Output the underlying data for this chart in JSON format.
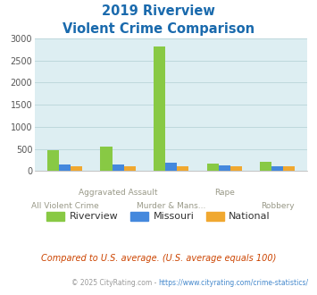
{
  "title_line1": "2019 Riverview",
  "title_line2": "Violent Crime Comparison",
  "title_color": "#1a6aad",
  "riverview": [
    475,
    560,
    2820,
    175,
    205
  ],
  "missouri": [
    150,
    155,
    185,
    130,
    115
  ],
  "national": [
    105,
    105,
    100,
    100,
    110
  ],
  "bar_color_riverview": "#88c944",
  "bar_color_missouri": "#4488dd",
  "bar_color_national": "#f0a830",
  "bg_color": "#ddeef2",
  "ylim": [
    0,
    3000
  ],
  "yticks": [
    0,
    500,
    1000,
    1500,
    2000,
    2500,
    3000
  ],
  "top_xlabels": {
    "1": "Aggravated Assault",
    "3": "Rape"
  },
  "bottom_xlabels": {
    "0": "All Violent Crime",
    "2": "Murder & Mans...",
    "4": "Robbery"
  },
  "legend_labels": [
    "Riverview",
    "Missouri",
    "National"
  ],
  "footnote1": "Compared to U.S. average. (U.S. average equals 100)",
  "footnote2_prefix": "© 2025 CityRating.com - ",
  "footnote2_url": "https://www.cityrating.com/crime-statistics/",
  "footnote1_color": "#cc4400",
  "footnote2_color": "#999999",
  "footnote2_url_color": "#4488cc"
}
